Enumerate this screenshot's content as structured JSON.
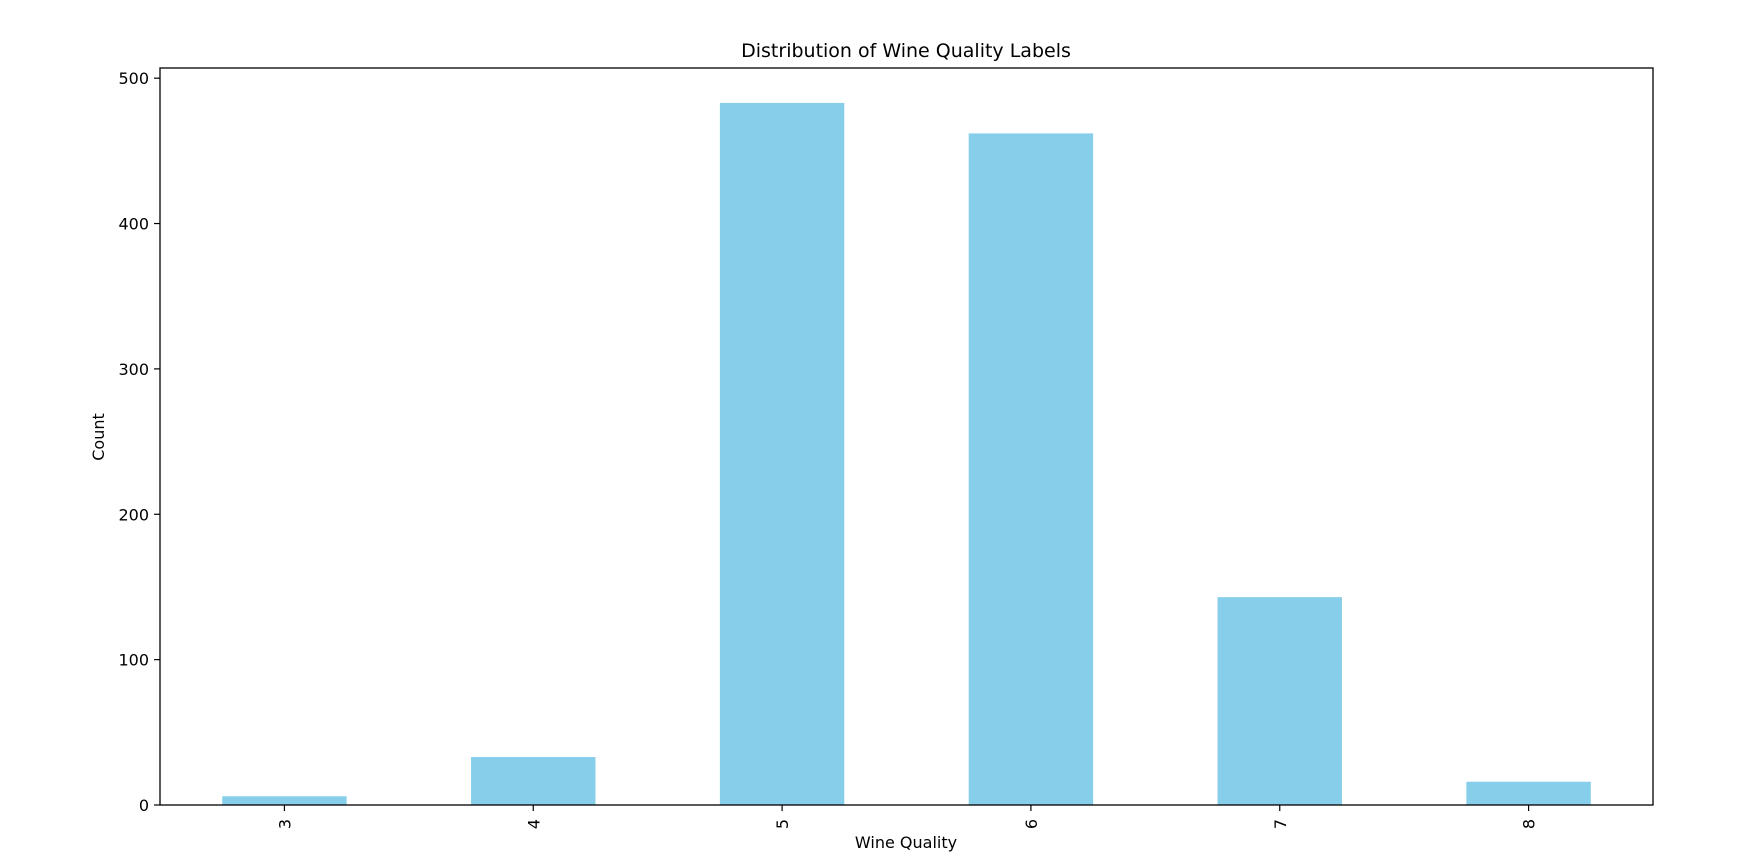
{
  "chart_data": {
    "type": "bar",
    "title": "Distribution of Wine Quality Labels",
    "xlabel": "Wine Quality",
    "ylabel": "Count",
    "categories": [
      "3",
      "4",
      "5",
      "6",
      "7",
      "8"
    ],
    "values": [
      6,
      33,
      483,
      462,
      143,
      16
    ],
    "ylim": [
      0,
      507
    ],
    "yticks": [
      0,
      100,
      200,
      300,
      400,
      500
    ],
    "bar_color": "#87CEEB",
    "grid": false,
    "legend": "none",
    "xtick_rotation": "vertical"
  }
}
